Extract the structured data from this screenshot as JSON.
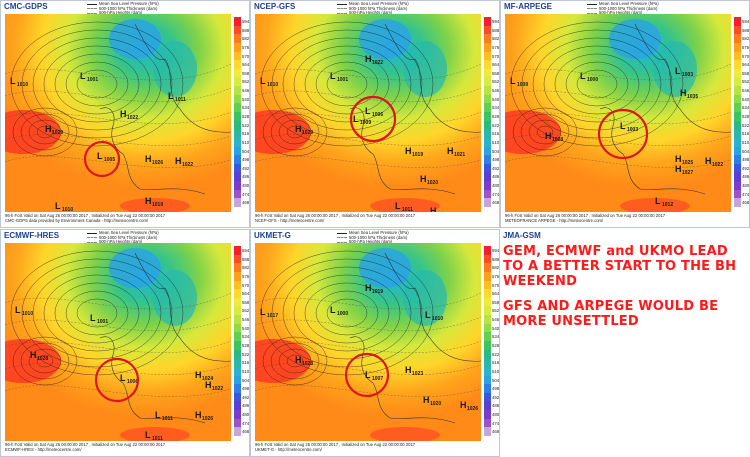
{
  "panels": [
    {
      "model": "CMC-GDPS",
      "footer1": "96-h Fcst Valid on Sat Aug 26 00:00:00 2017 , Initialized on Tue Aug 22 00:00:00 2017",
      "footer2": "CMC-GDPS data provided by Environment Canada - http://meteocentre.com/",
      "systems": [
        [
          "H",
          "1029"
        ],
        [
          "L",
          "1005"
        ],
        [
          "L",
          "1001"
        ],
        [
          "L",
          "1010"
        ],
        [
          "H",
          "1022"
        ],
        [
          "L",
          "1011"
        ],
        [
          "H",
          "1026"
        ],
        [
          "H",
          "1022"
        ],
        [
          "H",
          "1019"
        ],
        [
          "L",
          "1010"
        ]
      ]
    },
    {
      "model": "NCEP-GFS",
      "footer1": "96-h Fcst Valid on Sat Aug 26 00:00:00 2017 , Initialized on Tue Aug 22 00:00:00 2017",
      "footer2": "NCEP-GFS - http://meteocentre.com/",
      "systems": [
        [
          "H",
          "1029"
        ],
        [
          "L",
          "1006"
        ],
        [
          "L",
          "1001"
        ],
        [
          "L",
          "1010"
        ],
        [
          "H",
          "1022"
        ],
        [
          "L",
          "1009"
        ],
        [
          "H",
          "1019"
        ],
        [
          "H",
          "1021"
        ],
        [
          "H",
          "1020"
        ],
        [
          "L",
          "1011"
        ],
        [
          "H",
          "1017"
        ],
        [
          "L",
          "1009"
        ]
      ]
    },
    {
      "model": "MF-ARPEGE",
      "footer1": "96-h Fcst Valid on Sat Aug 26 00:00:00 2017 , Initialized on Tue Aug 22 00:00:00 2017",
      "footer2": "METEOFRANCE ARPEGE - http://meteocentre.com/",
      "systems": [
        [
          "H",
          "1028"
        ],
        [
          "L",
          "1003"
        ],
        [
          "L",
          "1000"
        ],
        [
          "L",
          "1009"
        ],
        [
          "H",
          "1035"
        ],
        [
          "L",
          "1003"
        ],
        [
          "H",
          "1025"
        ],
        [
          "H",
          "1022"
        ],
        [
          "H",
          "1027"
        ],
        [
          "L",
          "1012"
        ],
        [
          "H",
          "1019"
        ],
        [
          "L",
          "1000"
        ]
      ]
    },
    {
      "model": "ECMWF-HRES",
      "footer1": "96-h Fcst Valid on Sat Aug 26 00:00:00 2017 , Initialized on Tue Aug 22 00:00:00 2017",
      "footer2": "ECMWF-HRES - http://meteocentre.com/",
      "systems": [
        [
          "H",
          "1028"
        ],
        [
          "L",
          "1006"
        ],
        [
          "L",
          "1001"
        ],
        [
          "L",
          "1010"
        ],
        [
          "H",
          "1024"
        ],
        [
          "H",
          "1022"
        ],
        [
          "L",
          "1011"
        ],
        [
          "H",
          "1026"
        ],
        [
          "L",
          "1011"
        ],
        [
          "L",
          "1007"
        ]
      ]
    },
    {
      "model": "UKMET-G",
      "footer1": "96-h Fcst Valid on Sat Aug 26 00:00:00 2017 , Initialized on Tue Aug 22 00:00:00 2017",
      "footer2": "UKMET-G - http://meteocentre.com/",
      "systems": [
        [
          "H",
          "1028"
        ],
        [
          "L",
          "1007"
        ],
        [
          "L",
          "1000"
        ],
        [
          "L",
          "1017"
        ],
        [
          "H",
          "1019"
        ],
        [
          "L",
          "1010"
        ],
        [
          "H",
          "1023"
        ],
        [
          "H",
          "1026"
        ],
        [
          "H",
          "1020"
        ],
        [
          "L",
          "1010"
        ]
      ]
    }
  ],
  "empty_panel": {
    "model": "JMA-GSM"
  },
  "legend": {
    "line1": "Mean Sea Level Pressure (hPa)",
    "line2": "500-1000 hPa Thickness (dam)",
    "line3": "500-hPa Heights (dam)"
  },
  "colorbar_ticks": [
    "594",
    "588",
    "582",
    "576",
    "570",
    "564",
    "558",
    "552",
    "546",
    "540",
    "534",
    "528",
    "522",
    "516",
    "510",
    "504",
    "498",
    "492",
    "486",
    "480",
    "474",
    "468"
  ],
  "colorbar_colors": [
    "#f2202d",
    "#ff4a25",
    "#ff7a1a",
    "#ff9f1a",
    "#ffbe1f",
    "#ffd92b",
    "#f2ea3a",
    "#d8ec3e",
    "#b6e441",
    "#8fdc45",
    "#5fd050",
    "#3cc45f",
    "#2ab97f",
    "#2bb7a6",
    "#2cb3cc",
    "#2aa3e6",
    "#2a7fe8",
    "#3a55e0",
    "#5a3fd6",
    "#7a3ccc",
    "#9c52c8",
    "#c7a4dc"
  ],
  "notes": {
    "line1": "GEM, ECMWF and UKMO LEAD TO A BETTER START TO THE BH WEEKEND",
    "line2": "GFS AND ARPEGE WOULD BE MORE UNSETTLED"
  }
}
